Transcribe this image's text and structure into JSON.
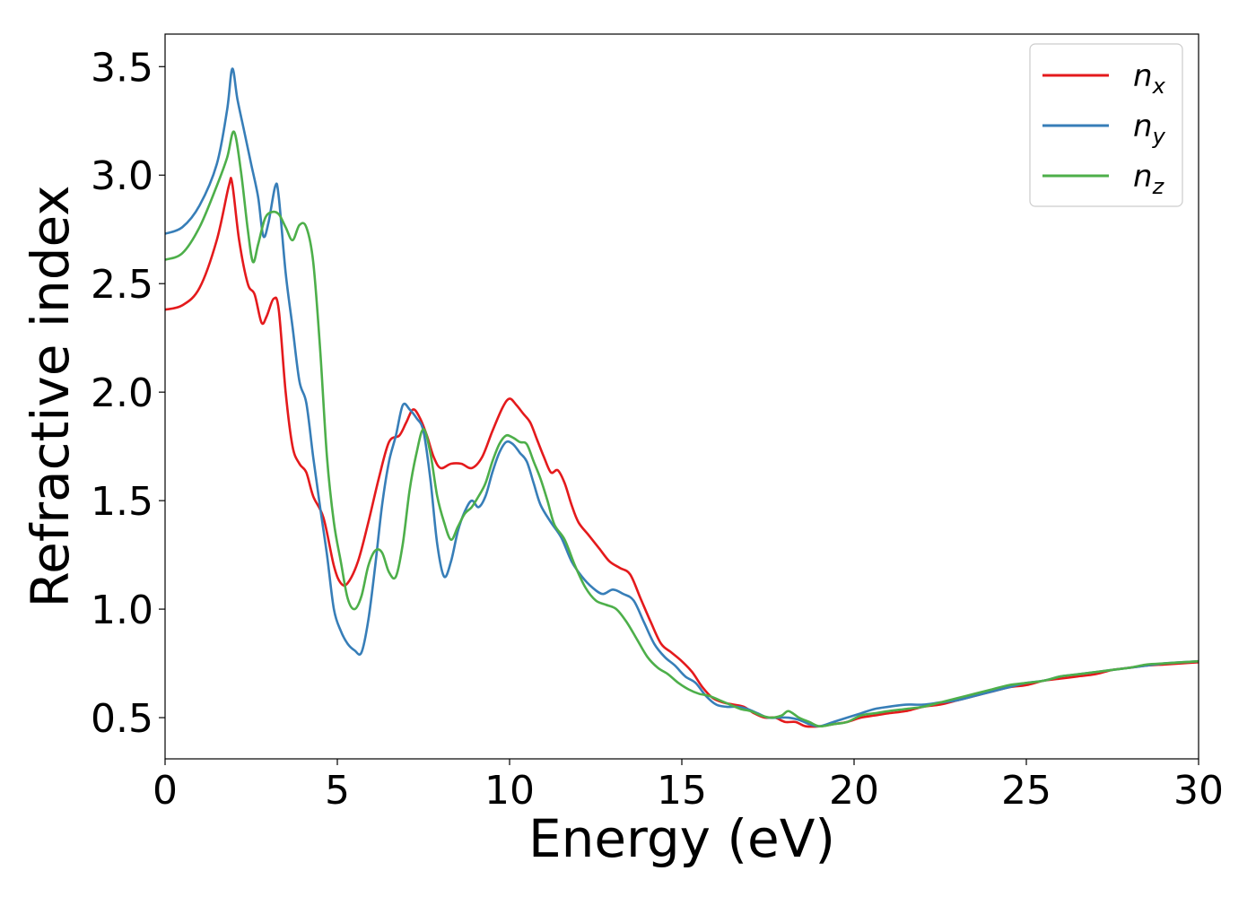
{
  "chart_data": {
    "type": "line",
    "title": "",
    "xlabel": "Energy (eV)",
    "ylabel": "Refractive index",
    "xlim": [
      0,
      30
    ],
    "ylim": [
      0.31,
      3.65
    ],
    "xticks": [
      0,
      5,
      10,
      15,
      20,
      25,
      30
    ],
    "yticks": [
      0.5,
      1.0,
      1.5,
      2.0,
      2.5,
      3.0,
      3.5
    ],
    "grid": false,
    "legend_position": "top-right",
    "series": [
      {
        "name": "n",
        "subscript": "x",
        "color": "#e41a1c",
        "points": [
          [
            0,
            2.38
          ],
          [
            0.5,
            2.4
          ],
          [
            1,
            2.48
          ],
          [
            1.5,
            2.7
          ],
          [
            1.85,
            2.95
          ],
          [
            1.95,
            2.96
          ],
          [
            2.15,
            2.7
          ],
          [
            2.4,
            2.5
          ],
          [
            2.6,
            2.45
          ],
          [
            2.8,
            2.32
          ],
          [
            2.95,
            2.35
          ],
          [
            3.15,
            2.43
          ],
          [
            3.3,
            2.38
          ],
          [
            3.5,
            2.0
          ],
          [
            3.7,
            1.75
          ],
          [
            3.9,
            1.67
          ],
          [
            4.1,
            1.63
          ],
          [
            4.3,
            1.52
          ],
          [
            4.6,
            1.42
          ],
          [
            4.9,
            1.2
          ],
          [
            5.1,
            1.12
          ],
          [
            5.3,
            1.12
          ],
          [
            5.6,
            1.22
          ],
          [
            5.9,
            1.4
          ],
          [
            6.2,
            1.6
          ],
          [
            6.5,
            1.77
          ],
          [
            6.8,
            1.8
          ],
          [
            7.0,
            1.86
          ],
          [
            7.2,
            1.92
          ],
          [
            7.4,
            1.88
          ],
          [
            7.6,
            1.8
          ],
          [
            7.8,
            1.7
          ],
          [
            8.0,
            1.65
          ],
          [
            8.3,
            1.67
          ],
          [
            8.6,
            1.67
          ],
          [
            8.9,
            1.65
          ],
          [
            9.2,
            1.7
          ],
          [
            9.5,
            1.82
          ],
          [
            9.8,
            1.93
          ],
          [
            10.0,
            1.97
          ],
          [
            10.2,
            1.94
          ],
          [
            10.4,
            1.9
          ],
          [
            10.6,
            1.86
          ],
          [
            10.8,
            1.78
          ],
          [
            11.0,
            1.7
          ],
          [
            11.2,
            1.63
          ],
          [
            11.4,
            1.64
          ],
          [
            11.6,
            1.58
          ],
          [
            11.8,
            1.48
          ],
          [
            12.0,
            1.4
          ],
          [
            12.3,
            1.34
          ],
          [
            12.6,
            1.28
          ],
          [
            12.9,
            1.22
          ],
          [
            13.2,
            1.19
          ],
          [
            13.5,
            1.16
          ],
          [
            13.8,
            1.05
          ],
          [
            14.1,
            0.94
          ],
          [
            14.4,
            0.84
          ],
          [
            14.7,
            0.8
          ],
          [
            15.0,
            0.76
          ],
          [
            15.3,
            0.71
          ],
          [
            15.6,
            0.64
          ],
          [
            15.9,
            0.59
          ],
          [
            16.2,
            0.57
          ],
          [
            16.5,
            0.56
          ],
          [
            16.8,
            0.55
          ],
          [
            17.1,
            0.52
          ],
          [
            17.4,
            0.5
          ],
          [
            17.7,
            0.5
          ],
          [
            18.0,
            0.48
          ],
          [
            18.3,
            0.48
          ],
          [
            18.6,
            0.46
          ],
          [
            19.0,
            0.46
          ],
          [
            19.4,
            0.47
          ],
          [
            19.8,
            0.48
          ],
          [
            20.2,
            0.5
          ],
          [
            20.6,
            0.51
          ],
          [
            21.0,
            0.52
          ],
          [
            21.5,
            0.53
          ],
          [
            22.0,
            0.55
          ],
          [
            22.5,
            0.56
          ],
          [
            23.0,
            0.58
          ],
          [
            23.5,
            0.6
          ],
          [
            24.0,
            0.62
          ],
          [
            24.5,
            0.64
          ],
          [
            25.0,
            0.65
          ],
          [
            25.5,
            0.67
          ],
          [
            26.0,
            0.68
          ],
          [
            26.5,
            0.69
          ],
          [
            27.0,
            0.7
          ],
          [
            27.5,
            0.72
          ],
          [
            28.0,
            0.73
          ],
          [
            28.5,
            0.74
          ],
          [
            29.0,
            0.745
          ],
          [
            29.5,
            0.75
          ],
          [
            30.0,
            0.755
          ]
        ]
      },
      {
        "name": "n",
        "subscript": "y",
        "color": "#377eb8",
        "points": [
          [
            0,
            2.73
          ],
          [
            0.5,
            2.76
          ],
          [
            1,
            2.86
          ],
          [
            1.5,
            3.05
          ],
          [
            1.8,
            3.3
          ],
          [
            1.95,
            3.49
          ],
          [
            2.1,
            3.35
          ],
          [
            2.3,
            3.2
          ],
          [
            2.5,
            3.05
          ],
          [
            2.7,
            2.9
          ],
          [
            2.85,
            2.72
          ],
          [
            3.0,
            2.78
          ],
          [
            3.2,
            2.95
          ],
          [
            3.3,
            2.9
          ],
          [
            3.5,
            2.55
          ],
          [
            3.7,
            2.3
          ],
          [
            3.9,
            2.05
          ],
          [
            4.1,
            1.95
          ],
          [
            4.3,
            1.7
          ],
          [
            4.5,
            1.47
          ],
          [
            4.7,
            1.25
          ],
          [
            4.9,
            1.0
          ],
          [
            5.1,
            0.9
          ],
          [
            5.3,
            0.84
          ],
          [
            5.5,
            0.81
          ],
          [
            5.7,
            0.8
          ],
          [
            5.9,
            0.95
          ],
          [
            6.1,
            1.2
          ],
          [
            6.3,
            1.48
          ],
          [
            6.5,
            1.68
          ],
          [
            6.7,
            1.8
          ],
          [
            6.9,
            1.94
          ],
          [
            7.1,
            1.92
          ],
          [
            7.3,
            1.88
          ],
          [
            7.5,
            1.82
          ],
          [
            7.7,
            1.6
          ],
          [
            7.9,
            1.3
          ],
          [
            8.1,
            1.15
          ],
          [
            8.3,
            1.22
          ],
          [
            8.5,
            1.36
          ],
          [
            8.7,
            1.45
          ],
          [
            8.9,
            1.5
          ],
          [
            9.1,
            1.47
          ],
          [
            9.3,
            1.52
          ],
          [
            9.5,
            1.63
          ],
          [
            9.7,
            1.72
          ],
          [
            9.9,
            1.77
          ],
          [
            10.1,
            1.76
          ],
          [
            10.3,
            1.72
          ],
          [
            10.5,
            1.68
          ],
          [
            10.7,
            1.58
          ],
          [
            10.9,
            1.48
          ],
          [
            11.2,
            1.4
          ],
          [
            11.5,
            1.33
          ],
          [
            11.8,
            1.22
          ],
          [
            12.1,
            1.15
          ],
          [
            12.4,
            1.1
          ],
          [
            12.7,
            1.07
          ],
          [
            13.0,
            1.09
          ],
          [
            13.3,
            1.07
          ],
          [
            13.6,
            1.04
          ],
          [
            13.9,
            0.94
          ],
          [
            14.2,
            0.84
          ],
          [
            14.5,
            0.78
          ],
          [
            14.8,
            0.74
          ],
          [
            15.1,
            0.69
          ],
          [
            15.4,
            0.66
          ],
          [
            15.7,
            0.6
          ],
          [
            16.0,
            0.56
          ],
          [
            16.3,
            0.55
          ],
          [
            16.6,
            0.55
          ],
          [
            16.9,
            0.54
          ],
          [
            17.2,
            0.52
          ],
          [
            17.5,
            0.5
          ],
          [
            17.8,
            0.5
          ],
          [
            18.1,
            0.5
          ],
          [
            18.4,
            0.49
          ],
          [
            18.7,
            0.47
          ],
          [
            19.0,
            0.46
          ],
          [
            19.4,
            0.48
          ],
          [
            19.8,
            0.5
          ],
          [
            20.2,
            0.52
          ],
          [
            20.6,
            0.54
          ],
          [
            21.0,
            0.55
          ],
          [
            21.5,
            0.56
          ],
          [
            22.0,
            0.56
          ],
          [
            22.5,
            0.57
          ],
          [
            23.0,
            0.58
          ],
          [
            23.5,
            0.6
          ],
          [
            24.0,
            0.62
          ],
          [
            24.5,
            0.64
          ],
          [
            25.0,
            0.66
          ],
          [
            25.5,
            0.67
          ],
          [
            26.0,
            0.69
          ],
          [
            26.5,
            0.7
          ],
          [
            27.0,
            0.71
          ],
          [
            27.5,
            0.72
          ],
          [
            28.0,
            0.73
          ],
          [
            28.5,
            0.74
          ],
          [
            29.0,
            0.75
          ],
          [
            29.5,
            0.755
          ],
          [
            30.0,
            0.76
          ]
        ]
      },
      {
        "name": "n",
        "subscript": "z",
        "color": "#4daf4a",
        "points": [
          [
            0,
            2.61
          ],
          [
            0.5,
            2.64
          ],
          [
            1,
            2.76
          ],
          [
            1.5,
            2.95
          ],
          [
            1.8,
            3.08
          ],
          [
            2.0,
            3.2
          ],
          [
            2.2,
            3.02
          ],
          [
            2.4,
            2.75
          ],
          [
            2.55,
            2.6
          ],
          [
            2.7,
            2.68
          ],
          [
            2.9,
            2.8
          ],
          [
            3.1,
            2.83
          ],
          [
            3.3,
            2.82
          ],
          [
            3.5,
            2.76
          ],
          [
            3.7,
            2.7
          ],
          [
            3.9,
            2.77
          ],
          [
            4.1,
            2.76
          ],
          [
            4.3,
            2.6
          ],
          [
            4.5,
            2.2
          ],
          [
            4.7,
            1.7
          ],
          [
            4.9,
            1.4
          ],
          [
            5.1,
            1.22
          ],
          [
            5.3,
            1.05
          ],
          [
            5.5,
            1.0
          ],
          [
            5.7,
            1.06
          ],
          [
            5.9,
            1.2
          ],
          [
            6.1,
            1.27
          ],
          [
            6.3,
            1.26
          ],
          [
            6.5,
            1.17
          ],
          [
            6.7,
            1.15
          ],
          [
            6.9,
            1.3
          ],
          [
            7.1,
            1.55
          ],
          [
            7.3,
            1.72
          ],
          [
            7.5,
            1.83
          ],
          [
            7.7,
            1.72
          ],
          [
            7.9,
            1.52
          ],
          [
            8.1,
            1.4
          ],
          [
            8.3,
            1.32
          ],
          [
            8.5,
            1.38
          ],
          [
            8.7,
            1.44
          ],
          [
            8.9,
            1.47
          ],
          [
            9.1,
            1.52
          ],
          [
            9.3,
            1.58
          ],
          [
            9.5,
            1.68
          ],
          [
            9.7,
            1.76
          ],
          [
            9.9,
            1.8
          ],
          [
            10.1,
            1.79
          ],
          [
            10.3,
            1.77
          ],
          [
            10.5,
            1.76
          ],
          [
            10.7,
            1.68
          ],
          [
            10.9,
            1.6
          ],
          [
            11.1,
            1.5
          ],
          [
            11.3,
            1.39
          ],
          [
            11.6,
            1.32
          ],
          [
            11.9,
            1.2
          ],
          [
            12.2,
            1.1
          ],
          [
            12.5,
            1.04
          ],
          [
            12.8,
            1.02
          ],
          [
            13.1,
            1.0
          ],
          [
            13.4,
            0.94
          ],
          [
            13.7,
            0.86
          ],
          [
            14.0,
            0.78
          ],
          [
            14.3,
            0.73
          ],
          [
            14.6,
            0.7
          ],
          [
            14.9,
            0.66
          ],
          [
            15.2,
            0.63
          ],
          [
            15.5,
            0.61
          ],
          [
            15.8,
            0.6
          ],
          [
            16.1,
            0.58
          ],
          [
            16.4,
            0.56
          ],
          [
            16.7,
            0.54
          ],
          [
            17.0,
            0.53
          ],
          [
            17.3,
            0.51
          ],
          [
            17.6,
            0.5
          ],
          [
            17.9,
            0.51
          ],
          [
            18.1,
            0.53
          ],
          [
            18.4,
            0.5
          ],
          [
            18.7,
            0.48
          ],
          [
            19.0,
            0.46
          ],
          [
            19.4,
            0.47
          ],
          [
            19.8,
            0.48
          ],
          [
            20.2,
            0.51
          ],
          [
            20.6,
            0.52
          ],
          [
            21.0,
            0.53
          ],
          [
            21.5,
            0.54
          ],
          [
            22.0,
            0.55
          ],
          [
            22.5,
            0.57
          ],
          [
            23.0,
            0.59
          ],
          [
            23.5,
            0.61
          ],
          [
            24.0,
            0.63
          ],
          [
            24.5,
            0.65
          ],
          [
            25.0,
            0.66
          ],
          [
            25.5,
            0.67
          ],
          [
            26.0,
            0.69
          ],
          [
            26.5,
            0.7
          ],
          [
            27.0,
            0.71
          ],
          [
            27.5,
            0.72
          ],
          [
            28.0,
            0.73
          ],
          [
            28.5,
            0.745
          ],
          [
            29.0,
            0.75
          ],
          [
            29.5,
            0.755
          ],
          [
            30.0,
            0.76
          ]
        ]
      }
    ]
  }
}
